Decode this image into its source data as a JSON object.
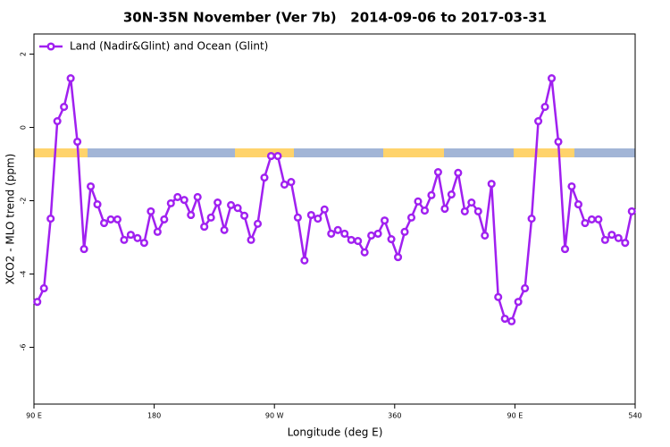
{
  "chart_data": {
    "type": "line",
    "title": "30N-35N November (Ver 7b)   2014-09-06 to 2017-03-31",
    "x_label": "Longitude (deg E)",
    "y_label": "XCO2 - MLO trend (ppm)",
    "xlim": [
      90,
      540
    ],
    "xticks": [
      {
        "value": 90,
        "label": "90 E"
      },
      180,
      {
        "value": 270,
        "label": "90 W"
      },
      360,
      {
        "value": 450,
        "label": "90 E"
      },
      540
    ],
    "ylim": [
      -7.55,
      2.55
    ],
    "yticks": [
      -6,
      -4,
      -2,
      0,
      2
    ],
    "legend": "top-left",
    "x": [
      92.5,
      97.5,
      102.5,
      107.5,
      112.5,
      117.5,
      122.5,
      127.5,
      132.5,
      137.5,
      142.5,
      147.5,
      152.5,
      157.5,
      162.5,
      167.5,
      172.5,
      177.5,
      182.5,
      187.5,
      192.5,
      197.5,
      202.5,
      207.5,
      212.5,
      217.5,
      222.5,
      227.5,
      232.5,
      237.5,
      242.5,
      247.5,
      252.5,
      257.5,
      262.5,
      267.5,
      272.5,
      277.5,
      282.5,
      287.5,
      292.5,
      297.5,
      302.5,
      307.5,
      312.5,
      317.5,
      322.5,
      327.5,
      332.5,
      337.5,
      342.5,
      347.5,
      352.5,
      357.5,
      362.5,
      367.5,
      372.5,
      377.5,
      382.5,
      387.5,
      392.5,
      397.5,
      402.5,
      407.5,
      412.5,
      417.5,
      422.5,
      427.5,
      432.5,
      437.5,
      442.5,
      447.5,
      452.5,
      457.5,
      462.5,
      467.5,
      472.5,
      477.5,
      482.5,
      487.5,
      492.5,
      497.5,
      502.5,
      507.5,
      512.5,
      517.5,
      522.5,
      527.5,
      532.5,
      537.5
    ],
    "series": [
      {
        "name": "Land (Nadir&Glint) and Ocean (Glint)",
        "color": "#a020f0",
        "values": [
          -4.76,
          -4.39,
          -2.49,
          0.17,
          0.56,
          1.34,
          -0.39,
          -3.32,
          -1.61,
          -2.1,
          -2.61,
          -2.51,
          -2.51,
          -3.07,
          -2.93,
          -3.02,
          -3.15,
          -2.29,
          -2.85,
          -2.51,
          -2.07,
          -1.9,
          -1.98,
          -2.39,
          -1.9,
          -2.71,
          -2.46,
          -2.05,
          -2.8,
          -2.12,
          -2.2,
          -2.41,
          -3.07,
          -2.63,
          -1.37,
          -0.78,
          -0.78,
          -1.56,
          -1.49,
          -2.46,
          -3.63,
          -2.39,
          -2.49,
          -2.24,
          -2.9,
          -2.8,
          -2.9,
          -3.07,
          -3.1,
          -3.41,
          -2.95,
          -2.9,
          -2.54,
          -3.05,
          -3.54,
          -2.85,
          -2.46,
          -2.02,
          -2.27,
          -1.85,
          -1.22,
          -2.22,
          -1.83,
          -1.24,
          -2.29,
          -2.05,
          -2.29,
          -2.95,
          -1.54,
          -4.63,
          -5.22,
          -5.29,
          -4.76,
          -4.39,
          -2.49,
          0.17,
          0.56,
          1.34,
          -0.39,
          -3.32,
          -1.61,
          -2.1,
          -2.61,
          -2.51,
          -2.51,
          -3.07,
          -2.93,
          -3.02,
          -3.15,
          -2.29
        ]
      }
    ]
  }
}
